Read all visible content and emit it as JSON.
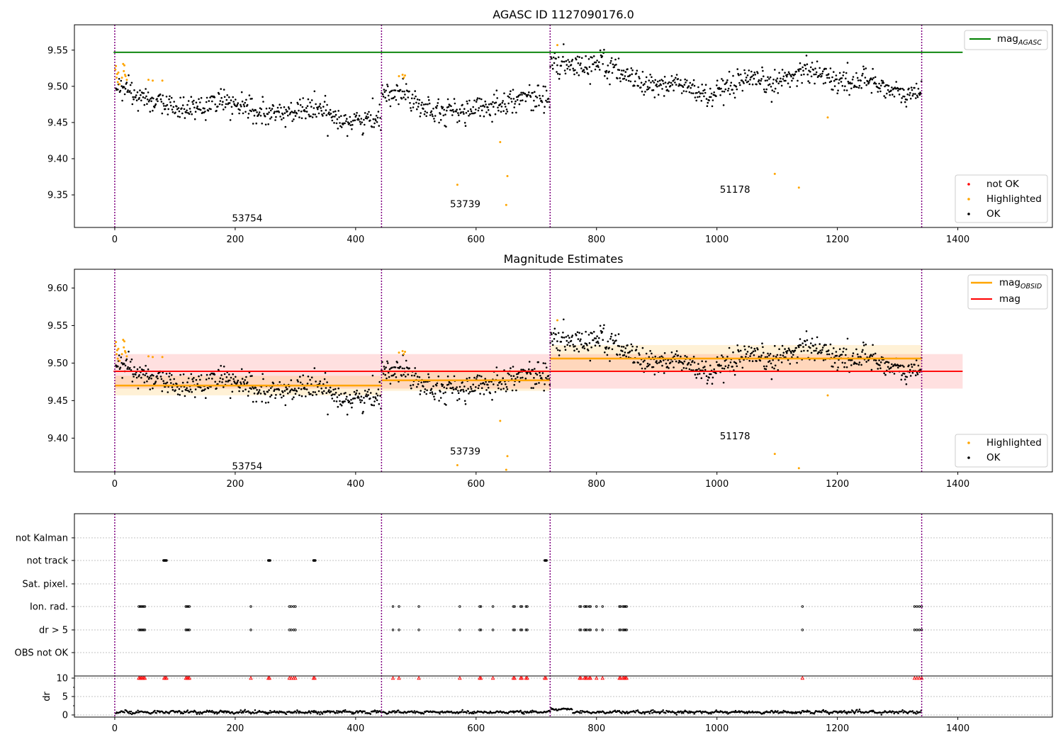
{
  "chart_data": [
    {
      "type": "scatter",
      "title": "AGASC ID 1127090176.0",
      "xlim": [
        -67,
        1557
      ],
      "ylim": [
        9.305,
        9.585
      ],
      "xticks": [
        0,
        200,
        400,
        600,
        800,
        1000,
        1200,
        1400
      ],
      "yticks": [
        9.35,
        9.4,
        9.45,
        9.5,
        9.55
      ],
      "segments": [
        {
          "obsid": "53754",
          "x_range": [
            0,
            443
          ],
          "label_pos": [
            220,
            9.318
          ]
        },
        {
          "obsid": "53739",
          "x_range": [
            443,
            723
          ],
          "label_pos": [
            582,
            9.338
          ]
        },
        {
          "obsid": "51178",
          "x_range": [
            723,
            1340
          ],
          "label_pos": [
            1030,
            9.358
          ]
        }
      ],
      "obsid_boundaries": [
        0,
        443,
        723,
        1340
      ],
      "mag_agasc": 9.547,
      "legend_top": [
        {
          "label": "mag",
          "sub": "AGASC",
          "color": "#008000"
        }
      ],
      "legend_bottom": [
        {
          "label": "not OK",
          "color": "#ff0000"
        },
        {
          "label": "Highlighted",
          "color": "#ffa500"
        },
        {
          "label": "OK",
          "color": "#000000"
        }
      ],
      "highlighted_points": [
        [
          1,
          9.523
        ],
        [
          2,
          9.528
        ],
        [
          3,
          9.512
        ],
        [
          4,
          9.517
        ],
        [
          5,
          9.506
        ],
        [
          6,
          9.519
        ],
        [
          8,
          9.503
        ],
        [
          12,
          9.512
        ],
        [
          14,
          9.531
        ],
        [
          15,
          9.521
        ],
        [
          16,
          9.529
        ],
        [
          17,
          9.516
        ],
        [
          18,
          9.514
        ],
        [
          20,
          9.509
        ],
        [
          56,
          9.509
        ],
        [
          63,
          9.508
        ],
        [
          79,
          9.508
        ],
        [
          472,
          9.514
        ],
        [
          478,
          9.516
        ],
        [
          480,
          9.512
        ],
        [
          482,
          9.515
        ],
        [
          569,
          9.364
        ],
        [
          640,
          9.423
        ],
        [
          650,
          9.336
        ],
        [
          652,
          9.376
        ],
        [
          735,
          9.557
        ],
        [
          1096,
          9.379
        ],
        [
          1136,
          9.36
        ],
        [
          1184,
          9.457
        ]
      ]
    },
    {
      "type": "scatter",
      "title": "Magnitude Estimates",
      "xlim": [
        -67,
        1557
      ],
      "ylim": [
        9.355,
        9.625
      ],
      "xticks": [
        0,
        200,
        400,
        600,
        800,
        1000,
        1200,
        1400
      ],
      "yticks": [
        9.4,
        9.45,
        9.5,
        9.55,
        9.6
      ],
      "segments": [
        {
          "obsid": "53754",
          "x_range": [
            0,
            443
          ],
          "label_pos": [
            220,
            9.363
          ],
          "mag_obsid": 9.47,
          "band": [
            9.457,
            9.483
          ]
        },
        {
          "obsid": "53739",
          "x_range": [
            443,
            723
          ],
          "label_pos": [
            582,
            9.383
          ],
          "mag_obsid": 9.477,
          "band": [
            9.463,
            9.491
          ]
        },
        {
          "obsid": "51178",
          "x_range": [
            723,
            1340
          ],
          "label_pos": [
            1030,
            9.403
          ],
          "mag_obsid": 9.506,
          "band": [
            9.488,
            9.524
          ]
        }
      ],
      "mag": 9.489,
      "mag_band": [
        9.466,
        9.512
      ],
      "legend_top": [
        {
          "label": "mag",
          "sub": "OBSID",
          "color": "#ffa500"
        },
        {
          "label": "mag",
          "sub": "",
          "color": "#ff0000"
        }
      ],
      "legend_bottom": [
        {
          "label": "Highlighted",
          "color": "#ffa500"
        },
        {
          "label": "OK",
          "color": "#000000"
        }
      ]
    },
    {
      "type": "scatter",
      "title": "",
      "xlim": [
        -67,
        1557
      ],
      "xticks": [
        0,
        200,
        400,
        600,
        800,
        1000,
        1200,
        1400
      ],
      "flag_rows": [
        "not Kalman",
        "not track",
        "Sat. pixel.",
        "Ion. rad.",
        "dr > 5",
        "OBS not OK"
      ],
      "flag_points": {
        "not Kalman": [],
        "not track": [
          81,
          82,
          83,
          84,
          85,
          86,
          255,
          256,
          257,
          258,
          330,
          331,
          332,
          333,
          714,
          715,
          716,
          717
        ],
        "Sat. pixel.": [],
        "Ion. rad.": [
          40,
          42,
          44,
          46,
          48,
          50,
          118,
          120,
          122,
          124,
          226,
          290,
          293,
          297,
          300,
          462,
          472,
          505,
          573,
          606,
          608,
          628,
          662,
          664,
          674,
          676,
          683,
          685,
          772,
          774,
          780,
          782,
          784,
          788,
          790,
          800,
          810,
          838,
          840,
          844,
          846,
          848,
          850,
          1142,
          1328,
          1332,
          1336,
          1340
        ],
        "dr > 5": [
          40,
          42,
          44,
          46,
          48,
          50,
          118,
          120,
          122,
          124,
          226,
          290,
          293,
          297,
          300,
          462,
          472,
          505,
          573,
          606,
          608,
          628,
          662,
          664,
          674,
          676,
          683,
          685,
          772,
          774,
          780,
          782,
          784,
          788,
          790,
          800,
          810,
          838,
          840,
          844,
          846,
          848,
          850,
          1142,
          1328,
          1332,
          1336,
          1340
        ],
        "OBS not OK": []
      },
      "dr_label": "dr",
      "dr_yticks": [
        0,
        5,
        10
      ],
      "dr_ylim": [
        -0.5,
        10.5
      ],
      "dr_clipped_x": [
        40,
        42,
        44,
        46,
        48,
        50,
        82,
        84,
        86,
        118,
        120,
        122,
        124,
        226,
        255,
        257,
        290,
        293,
        297,
        300,
        330,
        332,
        462,
        472,
        505,
        573,
        606,
        608,
        628,
        662,
        664,
        674,
        676,
        683,
        685,
        714,
        716,
        772,
        774,
        780,
        782,
        784,
        788,
        790,
        800,
        810,
        838,
        840,
        844,
        846,
        848,
        850,
        1142,
        1328,
        1332,
        1336,
        1340
      ]
    }
  ]
}
